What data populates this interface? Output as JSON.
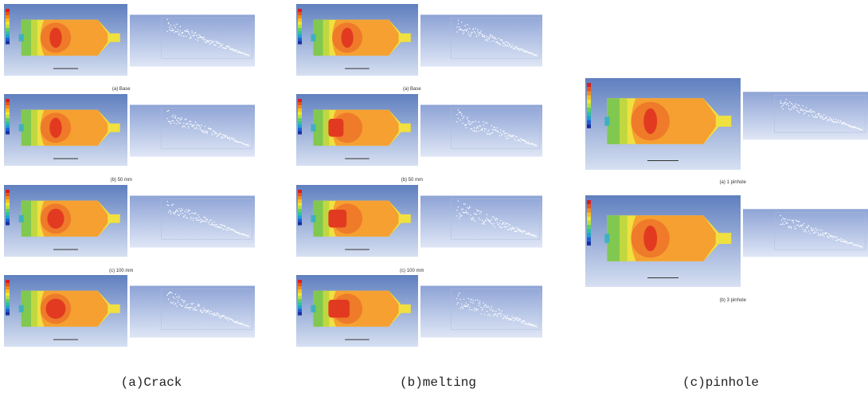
{
  "columns": [
    {
      "caption": "(a)Crack",
      "labels": [
        "(a) Base",
        "(b) 50 mm",
        "(c) 100 mm"
      ]
    },
    {
      "caption": "(b)melting",
      "labels": [
        "(a) Base",
        "(b) 50 mm",
        "(c) 100 mm"
      ]
    },
    {
      "caption": "(c)pinhole",
      "labels": [
        "(a) 1 pinhole",
        "(b) 3 pinhole"
      ]
    }
  ]
}
